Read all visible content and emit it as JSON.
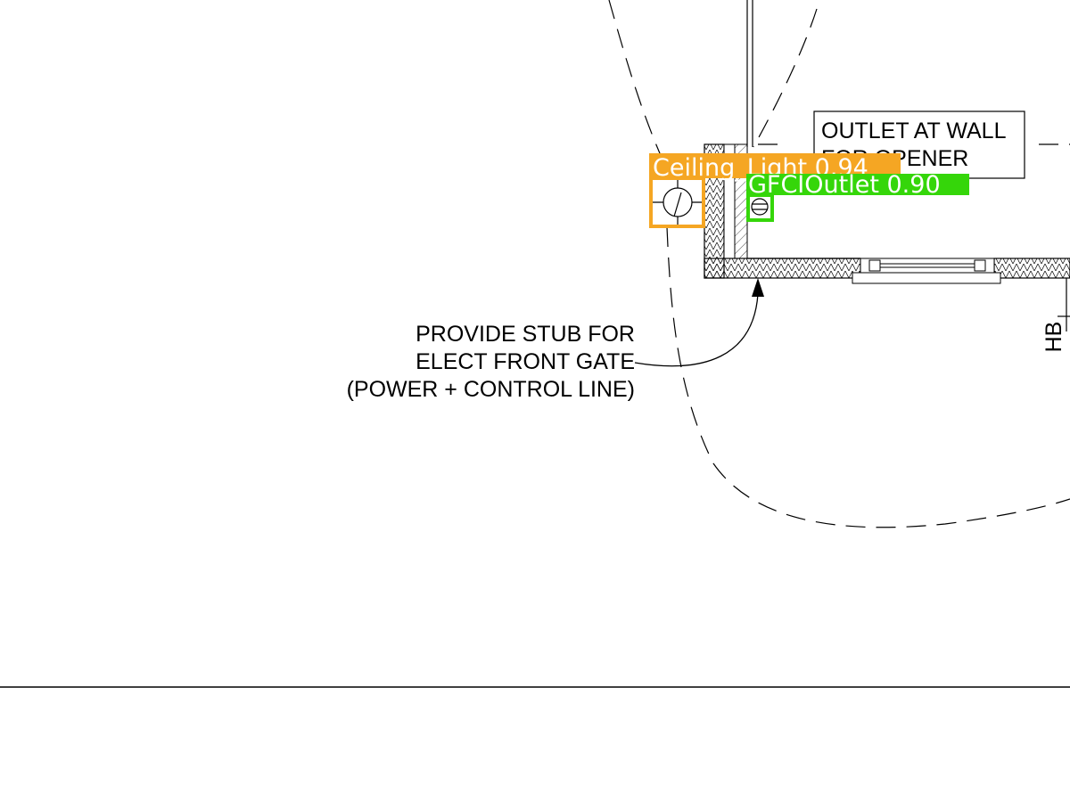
{
  "annotations": {
    "outlet_note": [
      "OUTLET AT WALL",
      "FOR OPENER"
    ],
    "stub_note": [
      "PROVIDE STUB FOR",
      "ELECT FRONT GATE",
      "(POWER + CONTROL LINE)"
    ],
    "hose_bib_label": "HB"
  },
  "detections": [
    {
      "label": "Ceiling_Light 0.94",
      "color": "#f5a623"
    },
    {
      "label": "GFCIOutlet 0.90",
      "color": "#35d60a"
    }
  ]
}
